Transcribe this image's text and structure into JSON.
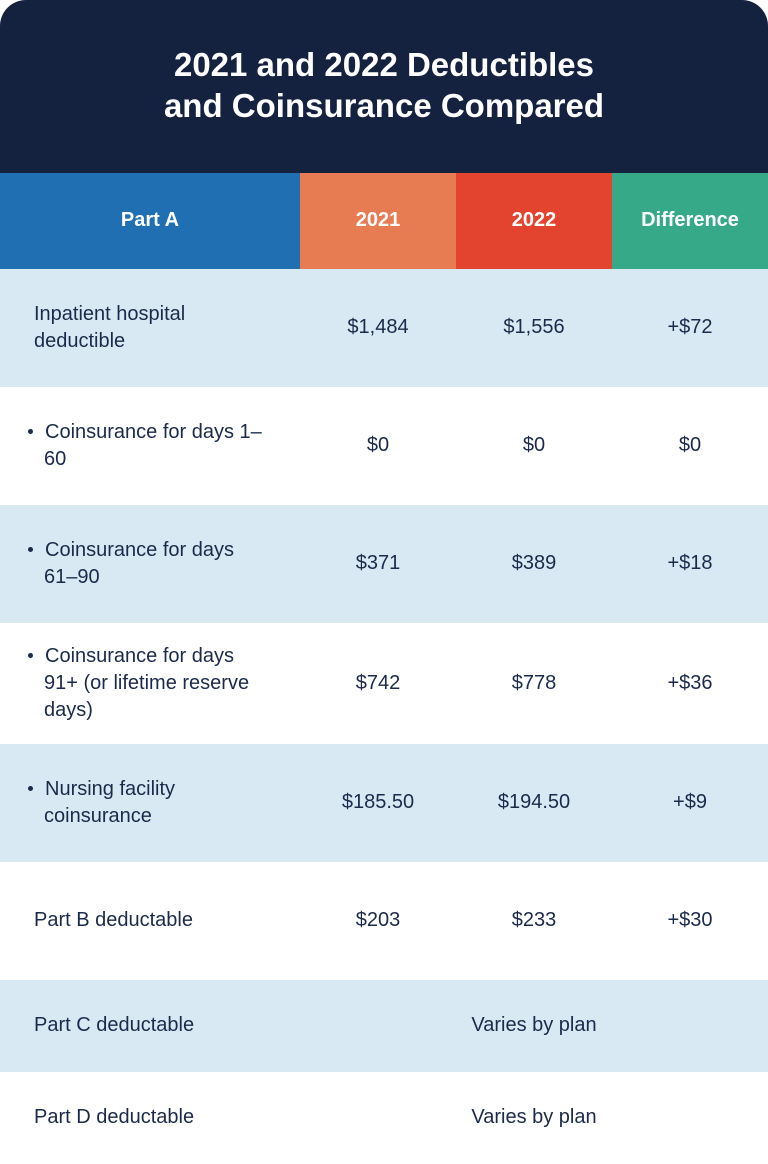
{
  "colors": {
    "title_band_bg": "#14213f",
    "header_part_a_bg": "#1f6fb2",
    "header_2021_bg": "#e77c52",
    "header_2022_bg": "#e2442f",
    "header_diff_bg": "#35a988",
    "row_even_bg": "#d8e9f4",
    "row_odd_bg": "#ffffff",
    "text_dark": "#1b2a4a",
    "white": "#ffffff"
  },
  "title_line1": "2021 and 2022 Deductibles",
  "title_line2": "and Coinsurance Compared",
  "headers": {
    "part_a": "Part A",
    "y2021": "2021",
    "y2022": "2022",
    "diff": "Difference"
  },
  "rows": [
    {
      "label": "Inpatient hospital deductible",
      "bullet": false,
      "v2021": "$1,484",
      "v2022": "$1,556",
      "diff": "+$72"
    },
    {
      "label": "Coinsurance for days 1–60",
      "bullet": true,
      "v2021": "$0",
      "v2022": "$0",
      "diff": "$0"
    },
    {
      "label": "Coinsurance for days 61–90",
      "bullet": true,
      "v2021": "$371",
      "v2022": "$389",
      "diff": "+$18"
    },
    {
      "label": "Coinsurance for days 91+ (or lifetime reserve days)",
      "bullet": true,
      "v2021": "$742",
      "v2022": "$778",
      "diff": "+$36"
    },
    {
      "label": "Nursing facility coinsurance",
      "bullet": true,
      "v2021": "$185.50",
      "v2022": "$194.50",
      "diff": "+$9"
    },
    {
      "label": "Part B deductable",
      "bullet": false,
      "v2021": "$203",
      "v2022": "$233",
      "diff": "+$30"
    },
    {
      "label": "Part C deductable",
      "bullet": false,
      "span": "Varies by plan"
    },
    {
      "label": "Part D deductable",
      "bullet": false,
      "span": "Varies by plan"
    }
  ]
}
